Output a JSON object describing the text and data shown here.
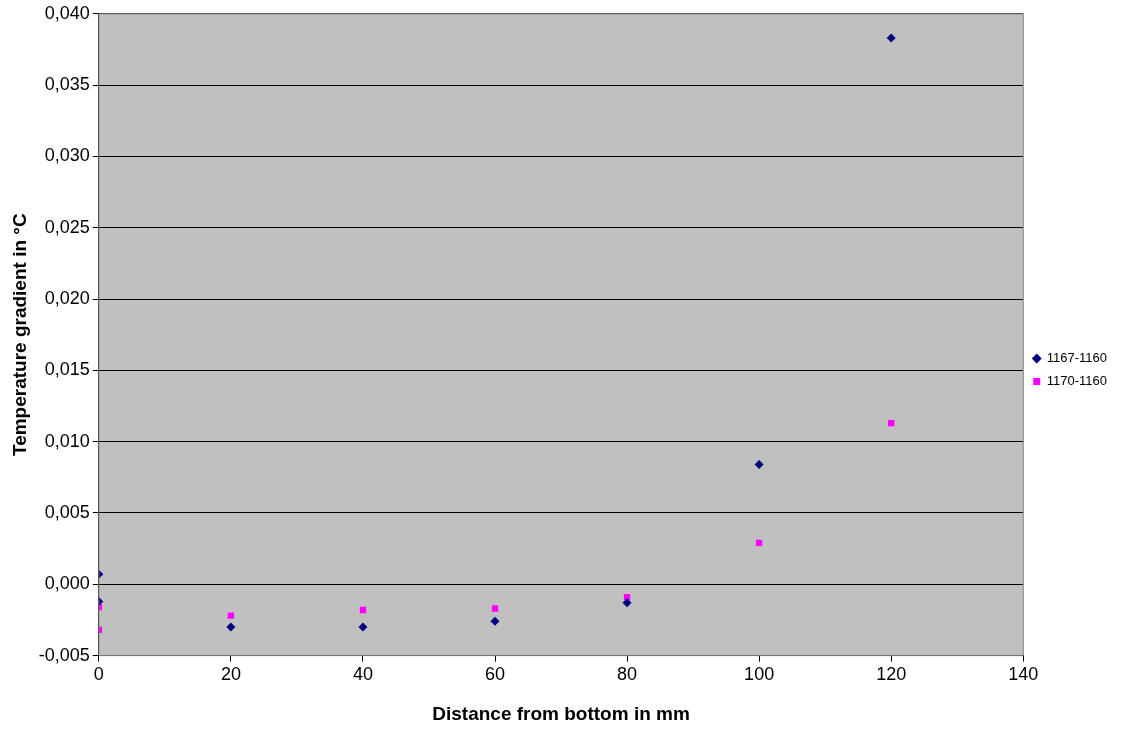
{
  "chart_data": {
    "type": "scatter",
    "xlabel": "Distance from bottom in mm",
    "ylabel": "Temperature gradient in °C",
    "xlim": [
      0,
      140
    ],
    "xticks": [
      0,
      20,
      40,
      60,
      80,
      100,
      120,
      140
    ],
    "ylim": [
      -0.005,
      0.04
    ],
    "yticks": [
      {
        "value": -0.005,
        "label": "-0,005"
      },
      {
        "value": 0,
        "label": "0,000"
      },
      {
        "value": 0.005,
        "label": "0,005"
      },
      {
        "value": 0.01,
        "label": "0,010"
      },
      {
        "value": 0.015,
        "label": "0,015"
      },
      {
        "value": 0.02,
        "label": "0,020"
      },
      {
        "value": 0.025,
        "label": "0,025"
      },
      {
        "value": 0.03,
        "label": "0,030"
      },
      {
        "value": 0.035,
        "label": "0,035"
      },
      {
        "value": 0.04,
        "label": "0,040"
      }
    ],
    "grid": "y",
    "legend": "right",
    "series": [
      {
        "name": "1167-1160",
        "color": "#000080",
        "marker": "diamond",
        "x": [
          0,
          0,
          20,
          40,
          60,
          80,
          100,
          120
        ],
        "values": [
          0.0007,
          -0.0012,
          -0.003,
          -0.003,
          -0.0026,
          -0.0013,
          0.0084,
          0.0383
        ]
      },
      {
        "name": "1170-1160",
        "color": "#ff00ff",
        "marker": "square",
        "x": [
          0,
          0,
          20,
          40,
          60,
          80,
          100,
          120
        ],
        "values": [
          -0.0016,
          -0.0032,
          -0.0022,
          -0.0018,
          -0.0017,
          -0.0009,
          0.0029,
          0.0113
        ]
      }
    ]
  }
}
